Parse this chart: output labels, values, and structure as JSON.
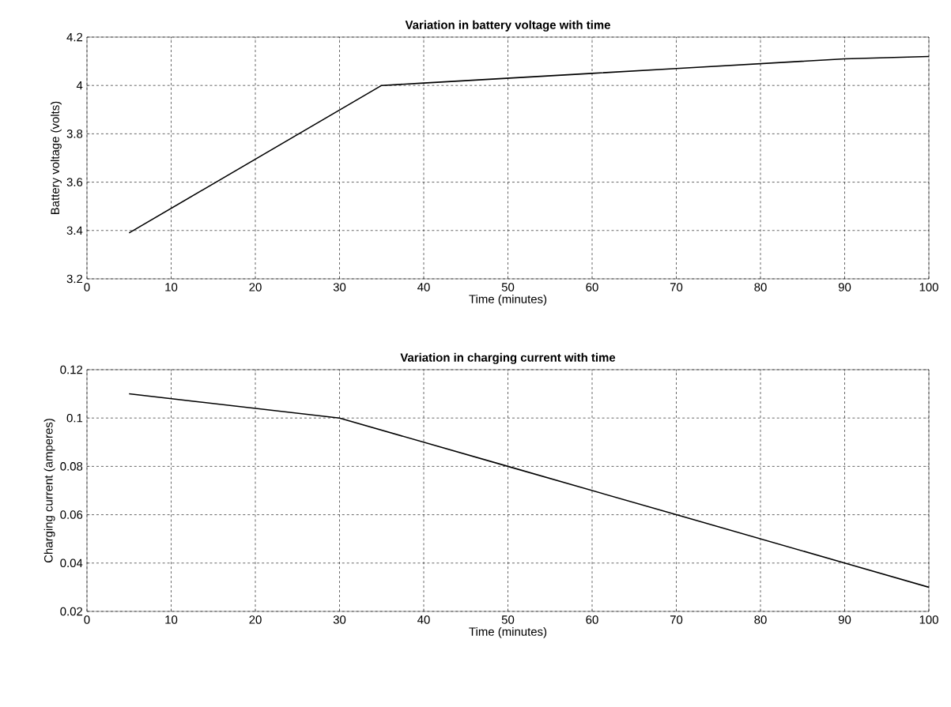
{
  "chart_data": [
    {
      "type": "line",
      "title": "Variation in battery voltage with time",
      "xlabel": "Time (minutes)",
      "ylabel": "Battery voltage (volts)",
      "x": [
        5,
        35,
        40,
        50,
        60,
        70,
        80,
        90,
        100
      ],
      "values": [
        3.39,
        4.0,
        4.01,
        4.03,
        4.05,
        4.07,
        4.09,
        4.11,
        4.12
      ],
      "color": "#000000",
      "xlim": [
        0,
        100
      ],
      "ylim": [
        3.2,
        4.2
      ],
      "xticks": [
        0,
        10,
        20,
        30,
        40,
        50,
        60,
        70,
        80,
        90,
        100
      ],
      "yticks": [
        3.2,
        3.4,
        3.6,
        3.8,
        4,
        4.2
      ],
      "grid": true
    },
    {
      "type": "line",
      "title": "Variation in charging current with time",
      "xlabel": "Time (minutes)",
      "ylabel": "Charging current (amperes)",
      "x": [
        5,
        30,
        50,
        70,
        90,
        100
      ],
      "values": [
        0.11,
        0.1,
        0.08,
        0.06,
        0.04,
        0.03
      ],
      "color": "#000000",
      "xlim": [
        0,
        100
      ],
      "ylim": [
        0.02,
        0.12
      ],
      "xticks": [
        0,
        10,
        20,
        30,
        40,
        50,
        60,
        70,
        80,
        90,
        100
      ],
      "yticks": [
        0.02,
        0.04,
        0.06,
        0.08,
        0.1,
        0.12
      ],
      "grid": true
    }
  ]
}
